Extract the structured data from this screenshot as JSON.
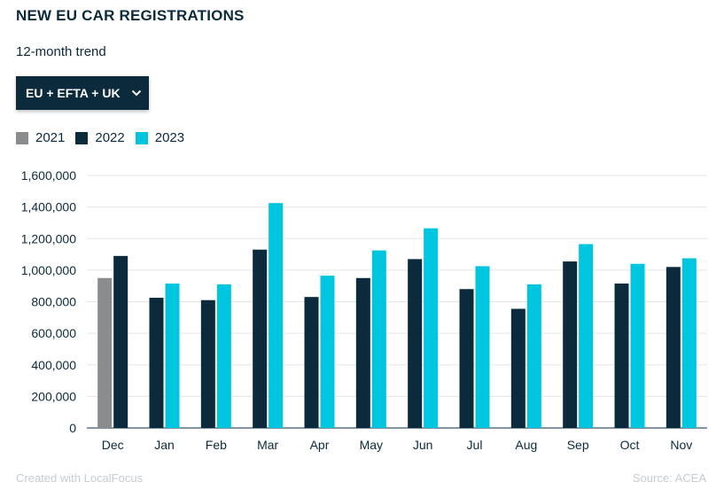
{
  "header": {
    "title": "NEW EU CAR REGISTRATIONS",
    "subtitle": "12-month trend"
  },
  "region_select": {
    "selected": "EU + EFTA + UK",
    "icon": "chevron-down-icon"
  },
  "footer": {
    "credit": "Created with LocalFocus",
    "source": "Source: ACEA"
  },
  "colors": {
    "2021": "#8a8c8e",
    "2022": "#0b2a3c",
    "2023": "#00c5de",
    "grid": "#e3e5e7"
  },
  "chart_data": {
    "type": "bar",
    "categories": [
      "Dec",
      "Jan",
      "Feb",
      "Mar",
      "Apr",
      "May",
      "Jun",
      "Jul",
      "Aug",
      "Sep",
      "Oct",
      "Nov"
    ],
    "series": [
      {
        "name": "2021",
        "values": [
          950000,
          null,
          null,
          null,
          null,
          null,
          null,
          null,
          null,
          null,
          null,
          null
        ]
      },
      {
        "name": "2022",
        "values": [
          1090000,
          825000,
          810000,
          1130000,
          830000,
          950000,
          1070000,
          880000,
          755000,
          1055000,
          915000,
          1020000
        ]
      },
      {
        "name": "2023",
        "values": [
          null,
          915000,
          910000,
          1425000,
          965000,
          1125000,
          1265000,
          1025000,
          910000,
          1165000,
          1040000,
          1075000
        ]
      }
    ],
    "yticks": [
      "0",
      "200,000",
      "400,000",
      "600,000",
      "800,000",
      "1,000,000",
      "1,200,000",
      "1,400,000",
      "1,600,000"
    ],
    "ylim": [
      0,
      1600000
    ],
    "grid": true,
    "legend": "top-left"
  }
}
